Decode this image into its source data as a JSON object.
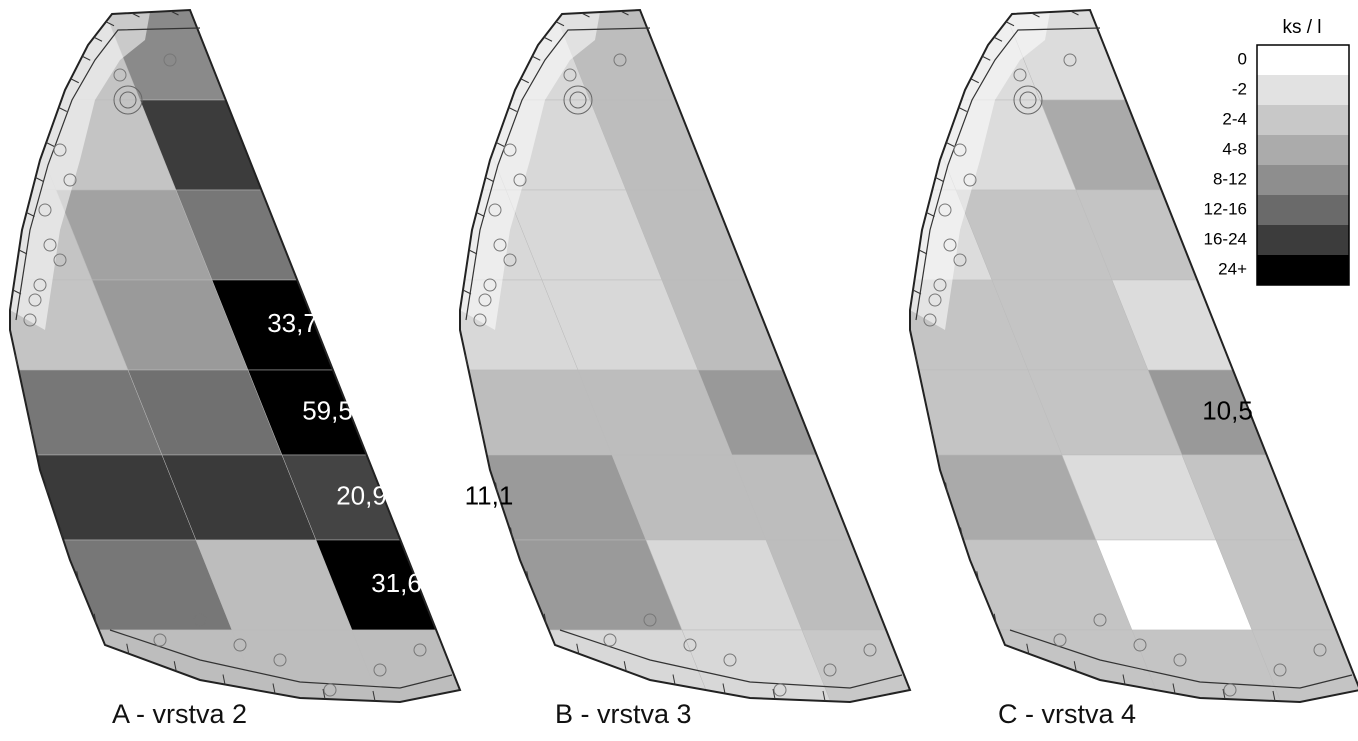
{
  "panels": [
    {
      "title": "A - vrstva 2",
      "labels": [
        "33,7",
        "59,5",
        "20,9",
        "31,6"
      ]
    },
    {
      "title": "B - vrstva 3",
      "labels": [
        "11,1"
      ]
    },
    {
      "title": "C - vrstva 4",
      "labels": [
        "10,5"
      ]
    }
  ],
  "legend": {
    "title": "ks / l",
    "items": [
      {
        "label": "0",
        "color": "#ffffff"
      },
      {
        "label": "-2",
        "color": "#e2e2e2"
      },
      {
        "label": "2-4",
        "color": "#c8c8c8"
      },
      {
        "label": "4-8",
        "color": "#ababab"
      },
      {
        "label": "8-12",
        "color": "#8e8e8e"
      },
      {
        "label": "12-16",
        "color": "#6a6a6a"
      },
      {
        "label": "16-24",
        "color": "#3c3c3c"
      },
      {
        "label": "24+",
        "color": "#000000"
      }
    ]
  }
}
